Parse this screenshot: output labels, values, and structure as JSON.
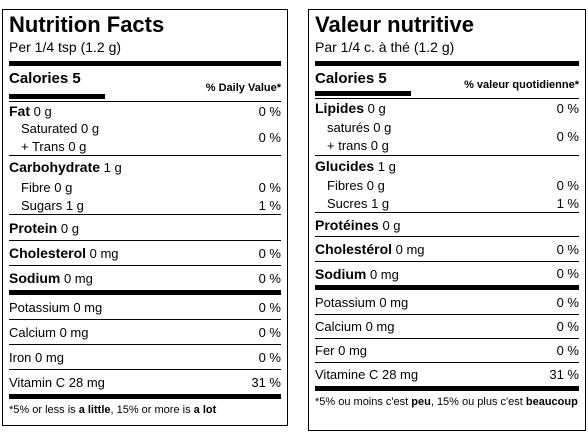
{
  "english": {
    "title": "Nutrition Facts",
    "serving": "Per 1/4 tsp (1.2 g)",
    "calories": "Calories 5",
    "dv_header": "% Daily Value*",
    "fat": {
      "name": "Fat",
      "amount": "0 g",
      "dv": "0 %"
    },
    "saturated": {
      "name": "Saturated",
      "amount": "0 g"
    },
    "trans": {
      "name": "+ Trans",
      "amount": "0 g"
    },
    "saturated_trans_dv": "0 %",
    "carbohydrate": {
      "name": "Carbohydrate",
      "amount": "1 g"
    },
    "fibre": {
      "name": "Fibre",
      "amount": "0 g",
      "dv": "0 %"
    },
    "sugars": {
      "name": "Sugars",
      "amount": "1 g",
      "dv": "1 %"
    },
    "protein": {
      "name": "Protein",
      "amount": "0 g"
    },
    "cholesterol": {
      "name": "Cholesterol",
      "amount": "0 mg",
      "dv": "0 %"
    },
    "sodium": {
      "name": "Sodium",
      "amount": "0 mg",
      "dv": "0 %"
    },
    "potassium": {
      "name": "Potassium",
      "amount": "0 mg",
      "dv": "0 %"
    },
    "calcium": {
      "name": "Calcium",
      "amount": "0 mg",
      "dv": "0 %"
    },
    "iron": {
      "name": "Iron",
      "amount": "0 mg",
      "dv": "0 %"
    },
    "vitamin_c": {
      "name": "Vitamin C",
      "amount": "28 mg",
      "dv": "31 %"
    },
    "footnote": [
      "*5% or less is ",
      "a little",
      ", 15% or more is ",
      "a lot"
    ]
  },
  "french": {
    "title": "Valeur nutritive",
    "serving": "Par 1/4 c. à thé (1.2 g)",
    "calories": "Calories 5",
    "dv_header": "% valeur quotidienne*",
    "fat": {
      "name": "Lipides",
      "amount": "0 g",
      "dv": "0 %"
    },
    "saturated": {
      "name": "saturés",
      "amount": "0 g"
    },
    "trans": {
      "name": "+ trans",
      "amount": "0 g"
    },
    "saturated_trans_dv": "0 %",
    "carbohydrate": {
      "name": "Glucides",
      "amount": "1 g"
    },
    "fibre": {
      "name": "Fibres",
      "amount": "0 g",
      "dv": "0 %"
    },
    "sugars": {
      "name": "Sucres",
      "amount": "1 g",
      "dv": "1 %"
    },
    "protein": {
      "name": "Protéines",
      "amount": "0 g"
    },
    "cholesterol": {
      "name": "Cholestérol",
      "amount": "0 mg",
      "dv": "0 %"
    },
    "sodium": {
      "name": "Sodium",
      "amount": "0 mg",
      "dv": "0 %"
    },
    "potassium": {
      "name": "Potassium",
      "amount": "0 mg",
      "dv": "0 %"
    },
    "calcium": {
      "name": "Calcium",
      "amount": "0 mg",
      "dv": "0 %"
    },
    "iron": {
      "name": "Fer",
      "amount": "0 mg",
      "dv": "0 %"
    },
    "vitamin_c": {
      "name": "Vitamine C",
      "amount": "28 mg",
      "dv": "31 %"
    },
    "footnote": [
      "*5% ou moins c'est ",
      "peu",
      ", 15% ou plus c'est ",
      "beaucoup"
    ]
  }
}
